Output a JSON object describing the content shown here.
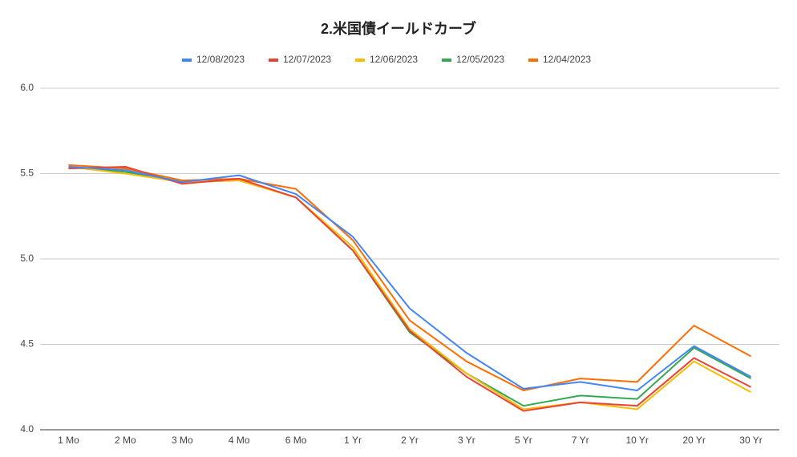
{
  "chart_data": {
    "type": "line",
    "title": "2.米国債イールドカーブ",
    "categories": [
      "1 Mo",
      "2 Mo",
      "3 Mo",
      "4 Mo",
      "6 Mo",
      "1 Yr",
      "2 Yr",
      "3 Yr",
      "5 Yr",
      "7 Yr",
      "10 Yr",
      "20 Yr",
      "30 Yr"
    ],
    "series": [
      {
        "name": "12/08/2023",
        "color": "#4285f4",
        "values": [
          5.54,
          5.52,
          5.45,
          5.49,
          5.38,
          5.13,
          4.71,
          4.45,
          4.24,
          4.28,
          4.23,
          4.49,
          4.31
        ]
      },
      {
        "name": "12/07/2023",
        "color": "#ea4335",
        "values": [
          5.53,
          5.54,
          5.44,
          5.47,
          5.36,
          5.05,
          4.58,
          4.31,
          4.11,
          4.16,
          4.14,
          4.42,
          4.25
        ]
      },
      {
        "name": "12/06/2023",
        "color": "#fbbc04",
        "values": [
          5.54,
          5.5,
          5.45,
          5.46,
          5.36,
          5.07,
          4.59,
          4.33,
          4.12,
          4.16,
          4.12,
          4.4,
          4.22
        ]
      },
      {
        "name": "12/05/2023",
        "color": "#34a853",
        "values": [
          5.54,
          5.51,
          5.45,
          5.46,
          5.36,
          5.05,
          4.57,
          4.33,
          4.14,
          4.2,
          4.18,
          4.48,
          4.3
        ]
      },
      {
        "name": "12/04/2023",
        "color": "#ff6d01",
        "values": [
          5.55,
          5.53,
          5.46,
          5.47,
          5.41,
          5.11,
          4.64,
          4.4,
          4.23,
          4.3,
          4.28,
          4.61,
          4.43
        ]
      }
    ],
    "ylim": [
      4,
      6
    ],
    "yticks": [
      {
        "value": 4,
        "label": "4.0"
      },
      {
        "value": 4.5,
        "label": "4.5"
      },
      {
        "value": 5,
        "label": "5.0"
      },
      {
        "value": 5.5,
        "label": "5.5"
      },
      {
        "value": 6,
        "label": "6.0"
      }
    ],
    "grid": true,
    "legend": "top"
  }
}
